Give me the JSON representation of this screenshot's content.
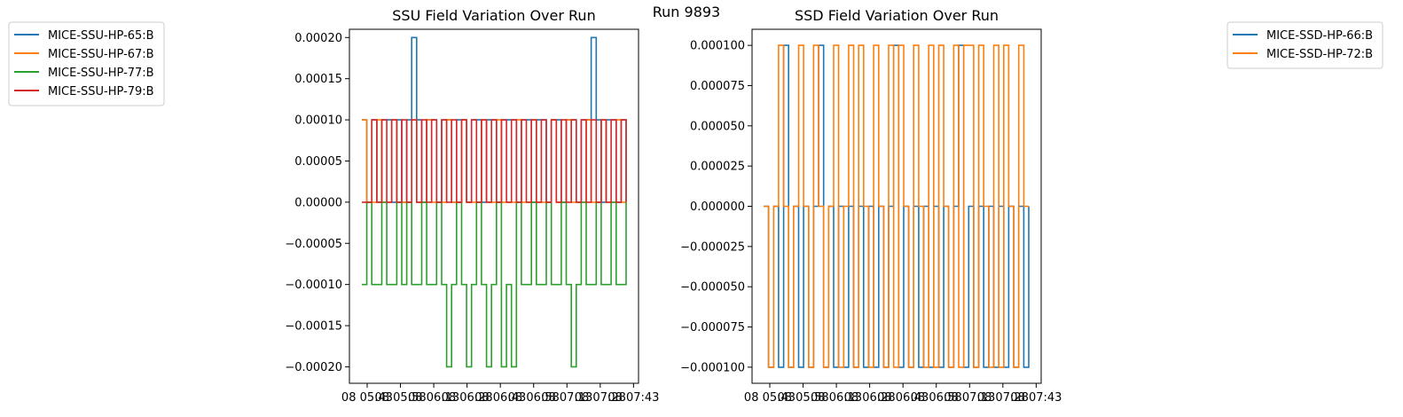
{
  "suptitle": "Run 9893",
  "chart_data": [
    {
      "type": "line",
      "title": "SSU Field Variation Over Run",
      "xlabel": "",
      "ylabel": "",
      "ylim": [
        -0.00022,
        0.00021
      ],
      "yticks": [
        0.0002,
        0.00015,
        0.0001,
        5e-05,
        0.0,
        -5e-05,
        -0.0001,
        -0.00015,
        -0.0002
      ],
      "ytick_labels": [
        "0.00020",
        "0.00015",
        "0.00010",
        "0.00005",
        "0.00000",
        "−0.00005",
        "−0.00010",
        "−0.00015",
        "−0.00020"
      ],
      "xtick_labels": [
        "08 05:43",
        "08 05:58",
        "08 06:13",
        "08 06:28",
        "08 06:43",
        "08 06:58",
        "08 07:13",
        "08 07:28",
        "08 07:43"
      ],
      "legend_position": "outside-left",
      "series": [
        {
          "name": "MICE-SSU-HP-65:B",
          "color": "#1f77b4",
          "values": [
            0.0001,
            0,
            0.0001,
            0,
            0.0001,
            0.0001,
            0,
            0.0001,
            0,
            0.0001,
            0.0002,
            0.0001,
            0,
            0.0001,
            0.0001,
            0,
            0.0001,
            0.0001,
            0,
            0.0001,
            0.0001,
            0,
            0.0001,
            0.0001,
            0,
            0.0001,
            0.0001,
            0,
            0.0001,
            0.0001,
            0.0001,
            0,
            0.0001,
            0.0001,
            0,
            0.0001,
            0.0001,
            0,
            0.0001,
            0.0001,
            0,
            0.0001,
            0.0001,
            0,
            0.0001,
            0.0001,
            0.0002,
            0.0001,
            0,
            0.0001,
            0.0001,
            0,
            0.0001,
            0
          ]
        },
        {
          "name": "MICE-SSU-HP-67:B",
          "color": "#ff7f0e",
          "values": [
            0.0001,
            0,
            0,
            0.0001,
            0,
            0,
            0.0001,
            0,
            0,
            0,
            0.0001,
            0,
            0,
            0.0001,
            0,
            0,
            0,
            0.0001,
            0,
            0,
            0.0001,
            0,
            0,
            0,
            0.0001,
            0,
            0,
            0.0001,
            0,
            0,
            0,
            0.0001,
            0,
            0,
            0.0001,
            0,
            0,
            0,
            0.0001,
            0,
            0,
            0.0001,
            0,
            0,
            0,
            0.0001,
            0,
            0,
            0.0001,
            0,
            0,
            0.0001,
            0,
            0
          ]
        },
        {
          "name": "MICE-SSU-HP-77:B",
          "color": "#2ca02c",
          "values": [
            -0.0001,
            0,
            -0.0001,
            -0.0001,
            0,
            -0.0001,
            -0.0001,
            0,
            -0.0001,
            0,
            -0.0001,
            -0.0001,
            0,
            -0.0001,
            -0.0001,
            0,
            -0.0001,
            -0.0002,
            -0.0001,
            0,
            -0.0001,
            -0.0002,
            -0.0001,
            0,
            -0.0001,
            -0.0002,
            -0.0001,
            0,
            -0.0002,
            -0.0001,
            -0.0002,
            0,
            -0.0001,
            -0.0001,
            0,
            -0.0001,
            -0.0001,
            0,
            -0.0001,
            -0.0001,
            0,
            -0.0001,
            -0.0002,
            -0.0001,
            0,
            -0.0001,
            -0.0001,
            0,
            -0.0001,
            -0.0001,
            0,
            -0.0001,
            -0.0001,
            0
          ]
        },
        {
          "name": "MICE-SSU-HP-79:B",
          "color": "#d62728",
          "values": [
            0,
            0,
            0.0001,
            0,
            0.0001,
            0,
            0.0001,
            0,
            0.0001,
            0,
            0.0001,
            0,
            0.0001,
            0,
            0.0001,
            0,
            0.0001,
            0,
            0.0001,
            0,
            0.0001,
            0,
            0.0001,
            0,
            0.0001,
            0,
            0.0001,
            0,
            0.0001,
            0,
            0.0001,
            0,
            0.0001,
            0,
            0.0001,
            0,
            0.0001,
            0,
            0.0001,
            0,
            0.0001,
            0,
            0.0001,
            0,
            0.0001,
            0,
            0.0001,
            0,
            0.0001,
            0,
            0.0001,
            0,
            0.0001,
            0
          ]
        }
      ]
    },
    {
      "type": "line",
      "title": "SSD Field Variation Over Run",
      "xlabel": "",
      "ylabel": "",
      "ylim": [
        -0.00011,
        0.00011
      ],
      "yticks": [
        0.0001,
        7.5e-05,
        5e-05,
        2.5e-05,
        0.0,
        -2.5e-05,
        -5e-05,
        -7.5e-05,
        -0.0001
      ],
      "ytick_labels": [
        "0.000100",
        "0.000075",
        "0.000050",
        "0.000025",
        "0.000000",
        "−0.000025",
        "−0.000050",
        "−0.000075",
        "−0.000100"
      ],
      "xtick_labels": [
        "08 05:43",
        "08 05:58",
        "08 06:13",
        "08 06:28",
        "08 06:43",
        "08 06:58",
        "08 07:13",
        "08 07:28",
        "08 07:43"
      ],
      "legend_position": "outside-right",
      "series": [
        {
          "name": "MICE-SSD-HP-66:B",
          "color": "#1f77b4",
          "values": [
            0,
            -0.0001,
            0,
            -0.0001,
            0.0001,
            -0.0001,
            0,
            -0.0001,
            0,
            -0.0001,
            0,
            0.0001,
            -0.0001,
            0,
            -0.0001,
            0,
            -0.0001,
            0,
            -0.0001,
            0,
            -0.0001,
            0,
            -0.0001,
            0,
            -0.0001,
            0,
            0.0001,
            -0.0001,
            0,
            -0.0001,
            0,
            -0.0001,
            0,
            -0.0001,
            0,
            -0.0001,
            0,
            -0.0001,
            0,
            0.0001,
            -0.0001,
            0,
            -0.0001,
            0,
            -0.0001,
            0,
            -0.0001,
            0,
            -0.0001,
            0,
            -0.0001,
            0,
            -0.0001,
            0
          ]
        },
        {
          "name": "MICE-SSD-HP-72:B",
          "color": "#ff7f0e",
          "values": [
            0,
            -0.0001,
            0,
            0.0001,
            0,
            -0.0001,
            0,
            0.0001,
            0,
            -0.0001,
            0.0001,
            0,
            -0.0001,
            0,
            0.0001,
            -0.0001,
            0,
            0.0001,
            -0.0001,
            0.0001,
            0,
            -0.0001,
            0.0001,
            0,
            -0.0001,
            0.0001,
            -0.0001,
            0.0001,
            0,
            -0.0001,
            0.0001,
            0,
            -0.0001,
            0.0001,
            -0.0001,
            0.0001,
            0,
            -0.0001,
            0.0001,
            -0.0001,
            0.0001,
            0.0001,
            -0.0001,
            0.0001,
            0,
            -0.0001,
            0.0001,
            -0.0001,
            0.0001,
            0,
            -0.0001,
            0.0001,
            0,
            0
          ]
        }
      ]
    }
  ]
}
